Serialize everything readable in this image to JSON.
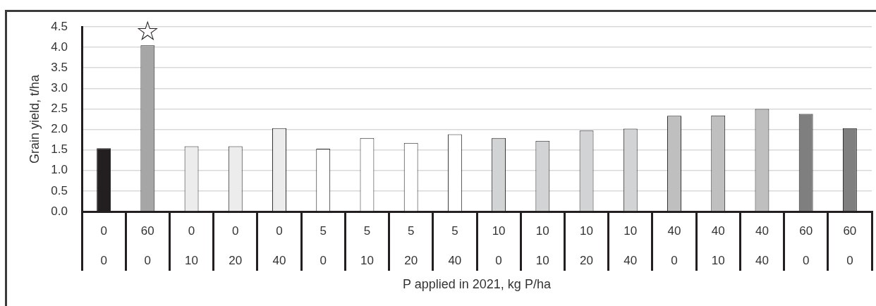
{
  "chart_data": {
    "type": "bar",
    "xlabel": "P applied in 2021, kg P/ha",
    "ylabel": "Grain yield, t/ha",
    "categories": [
      "0\n0",
      "60\n0",
      "0\n10",
      "0\n20",
      "0\n40",
      "5\n0",
      "5\n10",
      "5\n20",
      "5\n40",
      "10\n0",
      "10\n10",
      "10\n20",
      "10\n40",
      "40\n0",
      "40\n10",
      "40\n40",
      "60\n0",
      "60\n0"
    ],
    "values": [
      1.54,
      4.05,
      1.59,
      1.59,
      2.03,
      1.53,
      1.79,
      1.67,
      1.88,
      1.79,
      1.72,
      1.97,
      2.02,
      2.33,
      2.34,
      2.5,
      2.38,
      2.03
    ],
    "colors": [
      "#231f20",
      "#a6a6a6",
      "#ececec",
      "#ececec",
      "#ececec",
      "#ffffff",
      "#ffffff",
      "#ffffff",
      "#ffffff",
      "#d1d3d4",
      "#d1d3d4",
      "#d1d3d4",
      "#d1d3d4",
      "#bfbfbf",
      "#bfbfbf",
      "#bfbfbf",
      "#7f7f7f",
      "#7f7f7f"
    ],
    "ylim": [
      0,
      4.5
    ],
    "yticks": [
      {
        "value": 0,
        "label": "0.0"
      },
      {
        "value": 0.5,
        "label": "0.5"
      },
      {
        "value": 1,
        "label": "1.0"
      },
      {
        "value": 1.5,
        "label": "1.5"
      },
      {
        "value": 2,
        "label": "2.0"
      },
      {
        "value": 2.5,
        "label": "2.5"
      },
      {
        "value": 3,
        "label": "3.0"
      },
      {
        "value": 3.5,
        "label": "3.5"
      },
      {
        "value": 4,
        "label": "4.0"
      },
      {
        "value": 4.5,
        "label": "4.5"
      }
    ],
    "grid": "y",
    "annotations": [
      {
        "text": "☆",
        "x": "60\n0",
        "y": 4.05
      }
    ]
  }
}
